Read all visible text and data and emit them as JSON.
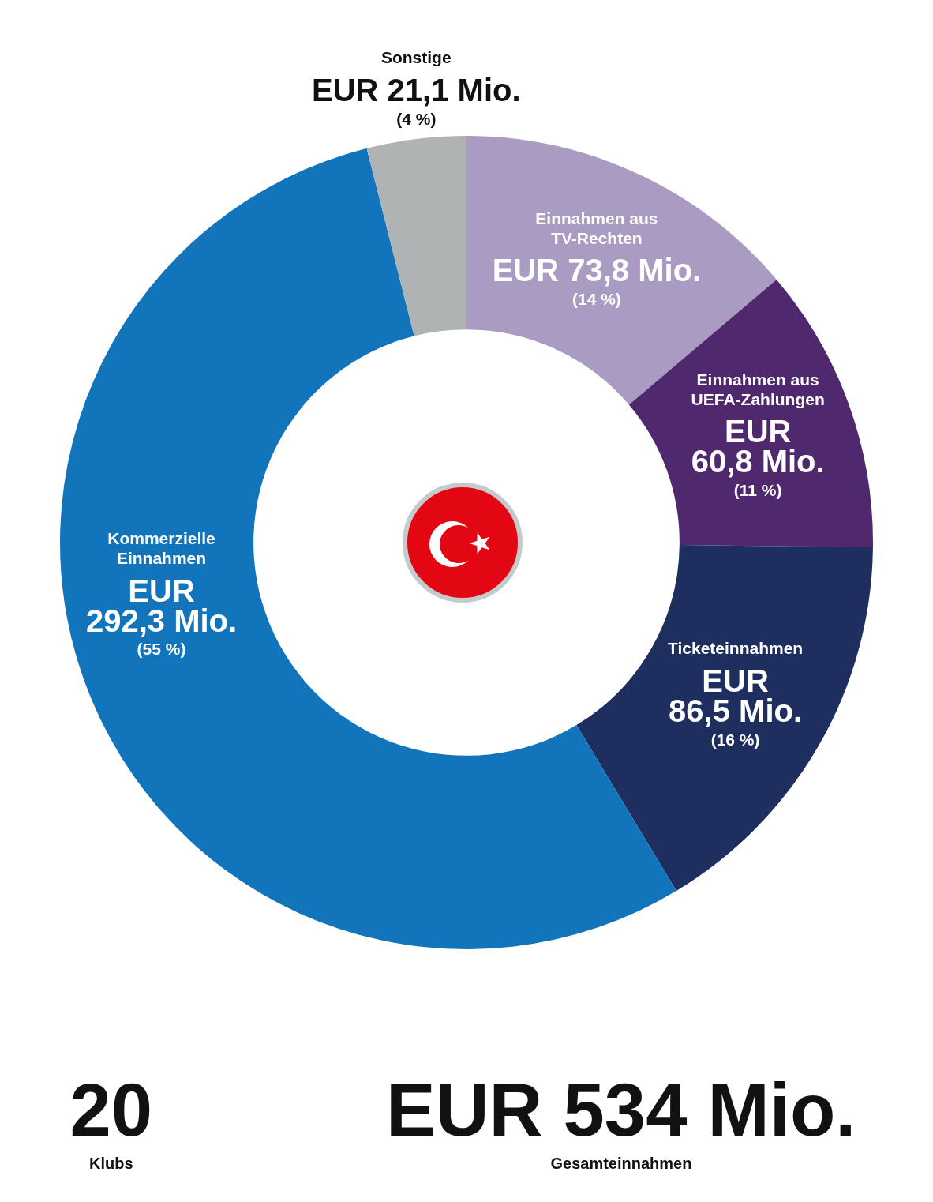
{
  "chart_data": {
    "type": "donut",
    "categories": [
      "Einnahmen aus TV-Rechten",
      "Einnahmen aus UEFA-Zahlungen",
      "Ticketeinnahmen",
      "Kommerzielle Einnahmen",
      "Sonstige"
    ],
    "values": [
      73.8,
      60.8,
      86.5,
      292.3,
      21.1
    ],
    "colors": [
      "#a99bc1",
      "#4f286e",
      "#1e2e5e",
      "#1275bc",
      "#b0b3b4"
    ],
    "value_labels": [
      "EUR 73,8 Mio. (14 %)",
      "EUR 60,8 Mio. (11 %)",
      "EUR 86,5 Mio. (16 %)",
      "EUR 292,3 Mio. (55 %)",
      "EUR 21,1 Mio. (4 %)"
    ],
    "annotations": [
      "20",
      "Klubs",
      "EUR 534 Mio.",
      "Gesamteinnahmen"
    ]
  }
}
